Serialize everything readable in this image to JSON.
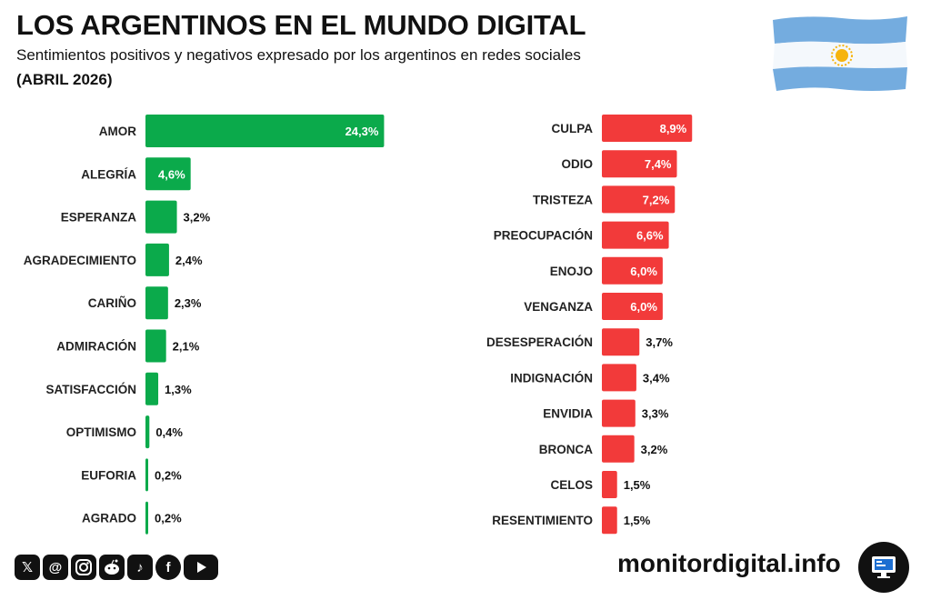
{
  "header": {
    "title": "LOS ARGENTINOS EN EL MUNDO DIGITAL",
    "subtitle": "Sentimientos positivos y negativos expresado por los argentinos en redes sociales",
    "period": "(ABRIL 2026)"
  },
  "flag": {
    "icon": "argentina-flag-icon",
    "colors": {
      "blue": "#74ACDF",
      "white": "#FFFFFF",
      "sun": "#F6B40E"
    }
  },
  "chart_data": [
    {
      "type": "bar",
      "orientation": "horizontal",
      "color": "#0BAA4B",
      "categories": [
        "AMOR",
        "ALEGRÍA",
        "ESPERANZA",
        "AGRADECIMIENTO",
        "CARIÑO",
        "ADMIRACIÓN",
        "SATISFACCIÓN",
        "OPTIMISMO",
        "EUFORIA",
        "AGRADO"
      ],
      "values": [
        24.3,
        4.6,
        3.2,
        2.4,
        2.3,
        2.1,
        1.3,
        0.4,
        0.2,
        0.2
      ],
      "labels": [
        "24,3%",
        "4,6%",
        "3,2%",
        "2,4%",
        "2,3%",
        "2,1%",
        "1,3%",
        "0,4%",
        "0,2%",
        "0,2%"
      ]
    },
    {
      "type": "bar",
      "orientation": "horizontal",
      "color": "#F23A3A",
      "categories": [
        "CULPA",
        "ODIO",
        "TRISTEZA",
        "PREOCUPACIÓN",
        "ENOJO",
        "VENGANZA",
        "DESESPERACIÓN",
        "INDIGNACIÓN",
        "ENVIDIA",
        "BRONCA",
        "CELOS",
        "RESENTIMIENTO"
      ],
      "values": [
        8.9,
        7.4,
        7.2,
        6.6,
        6.0,
        6.0,
        3.7,
        3.4,
        3.3,
        3.2,
        1.5,
        1.5
      ],
      "labels": [
        "8,9%",
        "7,4%",
        "7,2%",
        "6,6%",
        "6,0%",
        "6,0%",
        "3,7%",
        "3,4%",
        "3,3%",
        "3,2%",
        "1,5%",
        "1,5%"
      ]
    }
  ],
  "footer": {
    "social_icons": [
      "x-icon",
      "threads-icon",
      "instagram-icon",
      "reddit-icon",
      "tiktok-icon",
      "facebook-icon",
      "youtube-icon"
    ],
    "brand": "monitordigital.info",
    "brand_icon": "monitor-icon"
  }
}
